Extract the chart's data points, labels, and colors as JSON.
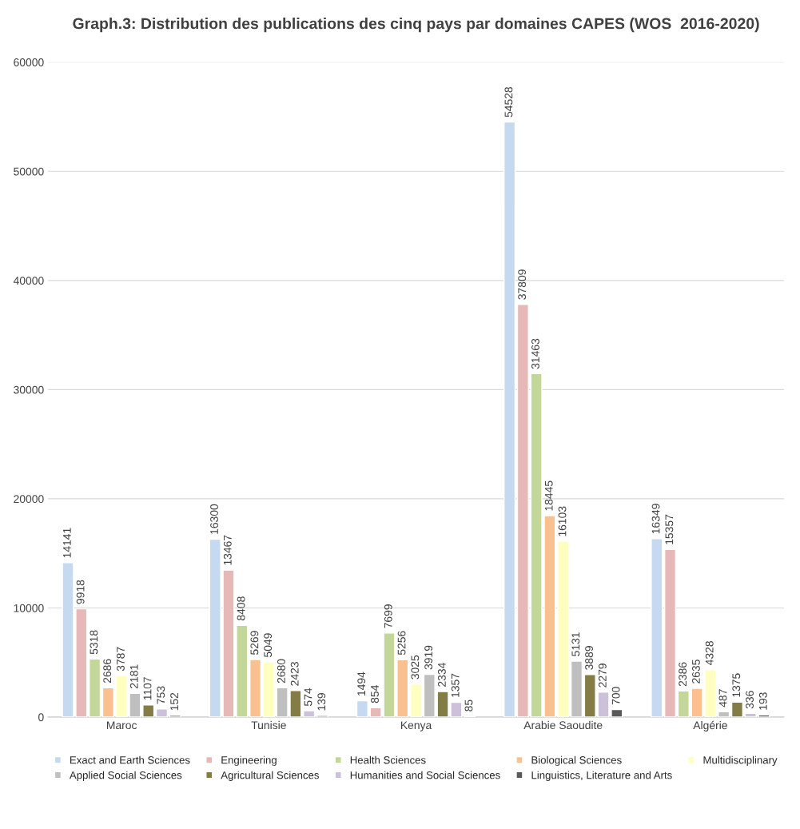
{
  "chart_data": {
    "type": "bar",
    "title": "Graph.3: Distribution des publications des cinq pays par domaines CAPES (WOS  2016-2020)",
    "categories": [
      "Maroc",
      "Tunisie",
      "Kenya",
      "Arabie Saoudite",
      "Algérie"
    ],
    "series": [
      {
        "name": "Exact and Earth Sciences",
        "color": "#c5d9f1",
        "values": [
          14141,
          16300,
          1494,
          54528,
          16349
        ]
      },
      {
        "name": "Engineering",
        "color": "#e6b9b8",
        "values": [
          9918,
          13467,
          854,
          37809,
          15357
        ]
      },
      {
        "name": "Health Sciences",
        "color": "#c4d79b",
        "values": [
          5318,
          8408,
          7699,
          31463,
          2386
        ]
      },
      {
        "name": "Biological Sciences",
        "color": "#fac090",
        "values": [
          2686,
          5269,
          5256,
          18445,
          2635
        ]
      },
      {
        "name": "Multidisciplinary",
        "color": "#ffffc0",
        "values": [
          3787,
          5049,
          3025,
          16103,
          4328
        ]
      },
      {
        "name": "Applied Social Sciences",
        "color": "#bfbfbf",
        "values": [
          2181,
          2680,
          3919,
          5131,
          487
        ]
      },
      {
        "name": "Agricultural Sciences",
        "color": "#847c45",
        "values": [
          1107,
          2423,
          2334,
          3889,
          1375
        ]
      },
      {
        "name": "Humanities and Social Sciences",
        "color": "#ccc0da",
        "values": [
          753,
          574,
          1357,
          2279,
          336
        ]
      },
      {
        "name": "Linguistics, Literature and Arts",
        "color": "#595959",
        "values": [
          152,
          139,
          85,
          700,
          193
        ]
      }
    ],
    "ylim": [
      0,
      60000
    ],
    "yticks": [
      0,
      10000,
      20000,
      30000,
      40000,
      50000,
      60000
    ],
    "grid": "y",
    "legend": "bottom",
    "data_labels": true
  }
}
